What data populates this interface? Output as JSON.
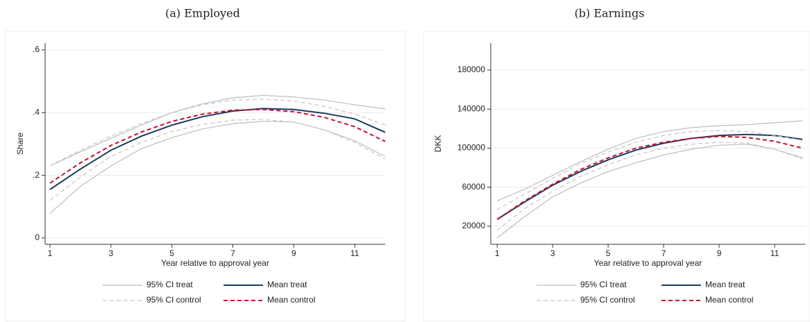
{
  "chart_data": [
    {
      "type": "line",
      "title": "(a) Employed",
      "xlabel": "Year relative to approval year",
      "ylabel": "Share",
      "x": [
        1,
        2,
        3,
        4,
        5,
        6,
        7,
        8,
        9,
        10,
        11,
        12
      ],
      "xlim": [
        0.84,
        12.0
      ],
      "xticks": [
        1,
        3,
        5,
        7,
        9,
        11
      ],
      "ylim": [
        -0.02,
        0.622
      ],
      "yticks": [
        0,
        {
          "value": 0.2,
          "label": ".2"
        },
        {
          "value": 0.4,
          "label": ".4"
        },
        {
          "value": 0.6,
          "label": ".6"
        }
      ],
      "grid": true,
      "series": [
        {
          "name": "95% CI treat",
          "color": "#bdbdbd",
          "dashed": false,
          "values": [
            0.23,
            0.275,
            0.318,
            0.36,
            0.4,
            0.428,
            0.447,
            0.455,
            0.45,
            0.44,
            0.425,
            0.412
          ]
        },
        {
          "name": "Mean treat",
          "color": "#1a3a5c",
          "dashed": false,
          "values": [
            0.155,
            0.22,
            0.28,
            0.325,
            0.36,
            0.387,
            0.405,
            0.413,
            0.41,
            0.398,
            0.38,
            0.337
          ]
        },
        {
          "name": "95% CI control",
          "color": "#c4c4c4",
          "dashed": true,
          "values": [
            0.23,
            0.28,
            0.325,
            0.365,
            0.4,
            0.425,
            0.44,
            0.443,
            0.437,
            0.42,
            0.395,
            0.36
          ]
        },
        {
          "name": "Mean control",
          "color": "#c8102e",
          "dashed": true,
          "values": [
            0.175,
            0.24,
            0.295,
            0.338,
            0.372,
            0.395,
            0.408,
            0.41,
            0.403,
            0.385,
            0.355,
            0.308
          ]
        }
      ],
      "extra_ci": [
        {
          "color": "#bdbdbd",
          "dashed": false,
          "values": [
            0.078,
            0.165,
            0.23,
            0.285,
            0.32,
            0.348,
            0.365,
            0.372,
            0.37,
            0.345,
            0.31,
            0.26
          ]
        },
        {
          "color": "#c4c4c4",
          "dashed": true,
          "values": [
            0.12,
            0.195,
            0.26,
            0.305,
            0.34,
            0.362,
            0.376,
            0.378,
            0.37,
            0.345,
            0.305,
            0.252
          ]
        }
      ]
    },
    {
      "type": "line",
      "title": "(b) Earnings",
      "xlabel": "Year relative to approval year",
      "ylabel": "DKK",
      "x": [
        1,
        2,
        3,
        4,
        5,
        6,
        7,
        8,
        9,
        10,
        11,
        12
      ],
      "xlim": [
        0.77,
        12.1
      ],
      "xticks": [
        1,
        3,
        5,
        7,
        9,
        11
      ],
      "ylim": [
        1500,
        207700
      ],
      "yticks": [
        20000,
        60000,
        100000,
        140000,
        180000
      ],
      "grid": true,
      "series": [
        {
          "name": "95% CI treat",
          "color": "#bdbdbd",
          "dashed": false,
          "values": [
            46000,
            58000,
            72000,
            86000,
            99000,
            110000,
            117000,
            121000,
            123000,
            124000,
            126000,
            128000
          ]
        },
        {
          "name": "Mean treat",
          "color": "#1a3a5c",
          "dashed": false,
          "values": [
            27000,
            45000,
            62000,
            76000,
            88000,
            98000,
            105000,
            110000,
            113000,
            114000,
            113000,
            109000
          ]
        },
        {
          "name": "95% CI control",
          "color": "#c4c4c4",
          "dashed": true,
          "values": [
            37000,
            53000,
            69000,
            84000,
            96000,
            106000,
            113000,
            117000,
            118000,
            117000,
            113000,
            108000
          ]
        },
        {
          "name": "Mean control",
          "color": "#c8102e",
          "dashed": true,
          "values": [
            27000,
            46000,
            63000,
            78000,
            90000,
            100000,
            106000,
            110000,
            112000,
            111000,
            107000,
            100000
          ]
        }
      ],
      "extra_ci": [
        {
          "color": "#bdbdbd",
          "dashed": false,
          "values": [
            8000,
            30000,
            50000,
            64000,
            76000,
            85000,
            93000,
            99000,
            103000,
            104000,
            99000,
            90000
          ]
        },
        {
          "color": "#c4c4c4",
          "dashed": true,
          "values": [
            16000,
            38000,
            56000,
            71000,
            83000,
            93000,
            100000,
            104000,
            106000,
            105000,
            99000,
            89000
          ]
        }
      ]
    }
  ]
}
